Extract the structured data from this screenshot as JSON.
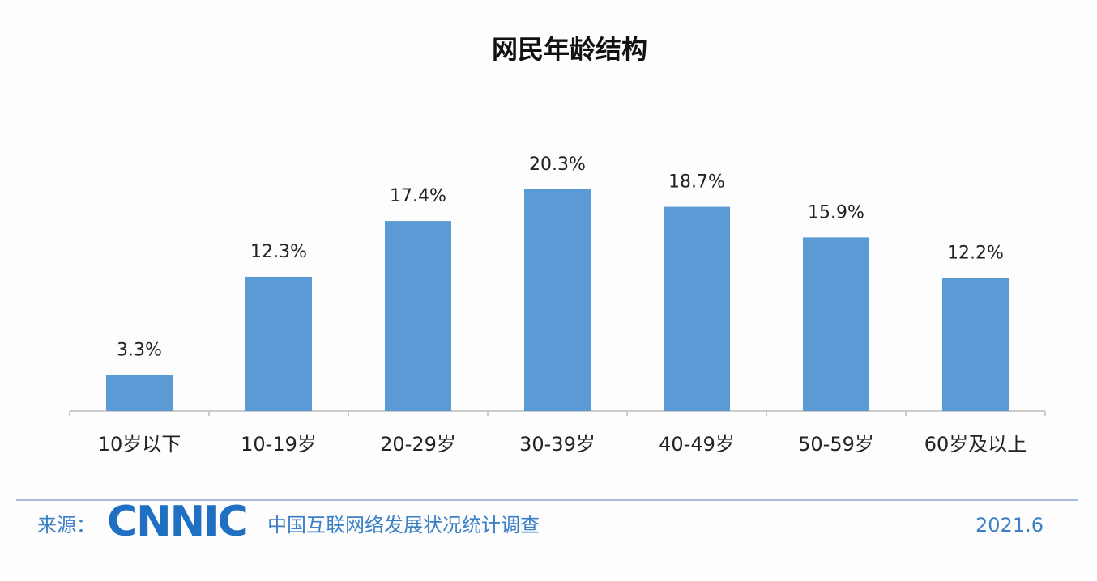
{
  "chart_data": {
    "type": "bar",
    "title": "网民年龄结构",
    "categories": [
      "10岁以下",
      "10-19岁",
      "20-29岁",
      "30-39岁",
      "40-49岁",
      "50-59岁",
      "60岁及以上"
    ],
    "values": [
      3.3,
      12.3,
      17.4,
      20.3,
      18.7,
      15.9,
      12.2
    ],
    "value_labels": [
      "3.3%",
      "12.3%",
      "17.4%",
      "20.3%",
      "18.7%",
      "15.9%",
      "12.2%"
    ],
    "color": "#5b9bd5"
  },
  "footer": {
    "source": "来源：",
    "logo": "CNNIC",
    "survey": "中国互联网络发展状况统计调查",
    "date": "2021.6"
  }
}
